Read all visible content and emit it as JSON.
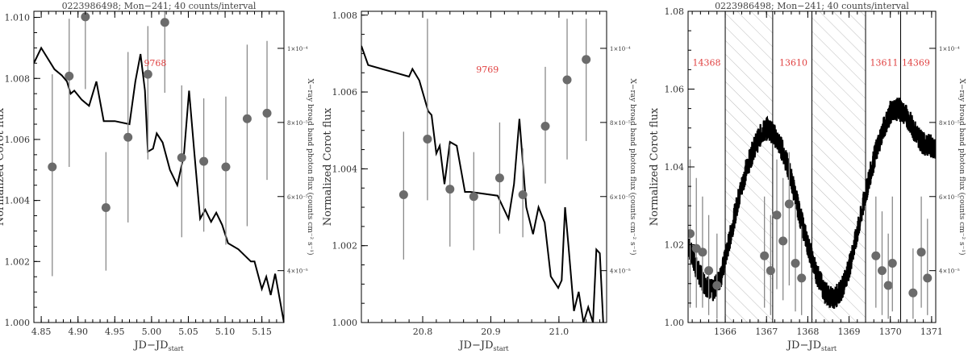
{
  "chart_data": [
    {
      "type": "line",
      "title": "0223986498; Mon−241; 40 counts/interval",
      "xlabel_main": "JD−JD",
      "xlabel_sub": "start",
      "ylabel": "Normalized Corot flux",
      "y2label": "X−ray broad band photon flux (counts cm⁻² s⁻¹)",
      "xlim": [
        4.84,
        5.18
      ],
      "ylim": [
        1.0,
        1.0102
      ],
      "xticks": [
        4.85,
        4.9,
        4.95,
        5.0,
        5.05,
        5.1,
        5.15
      ],
      "xtick_labels": [
        "4.85",
        "4.90",
        "4.95",
        "5.00",
        "5.05",
        "5.10",
        "5.15"
      ],
      "yticks": [
        1.0,
        1.002,
        1.004,
        1.006,
        1.008,
        1.01
      ],
      "ytick_labels": [
        "1.000",
        "1.002",
        "1.004",
        "1.006",
        "1.008",
        "1.010"
      ],
      "y2lim": [
        2.6e-05,
        0.00011
      ],
      "y2ticks": [
        4e-05,
        6e-05,
        8e-05,
        0.0001
      ],
      "y2tick_labels": [
        "4×10⁻⁵",
        "6×10⁻⁵",
        "8×10⁻⁵",
        "1×10⁻⁴"
      ],
      "line": {
        "x": [
          4.84,
          4.85,
          4.868,
          4.878,
          4.885,
          4.89,
          4.895,
          4.905,
          4.915,
          4.925,
          4.935,
          4.95,
          4.97,
          4.978,
          4.985,
          4.991,
          4.995,
          5.002,
          5.007,
          5.015,
          5.025,
          5.035,
          5.044,
          5.051,
          5.058,
          5.066,
          5.073,
          5.081,
          5.088,
          5.096,
          5.104,
          5.118,
          5.135,
          5.14,
          5.15,
          5.156,
          5.162,
          5.168,
          5.18
        ],
        "y": [
          1.0085,
          1.009,
          1.0083,
          1.0081,
          1.0079,
          1.0075,
          1.0076,
          1.0073,
          1.0071,
          1.0079,
          1.0066,
          1.0066,
          1.0065,
          1.0079,
          1.0088,
          1.0076,
          1.0056,
          1.0057,
          1.0062,
          1.0059,
          1.005,
          1.0045,
          1.0055,
          1.0076,
          1.0056,
          1.0034,
          1.0037,
          1.0033,
          1.0036,
          1.0032,
          1.0026,
          1.0024,
          1.002,
          1.002,
          1.0011,
          1.0015,
          1.0009,
          1.0016,
          1.0
        ]
      },
      "xray": [
        {
          "x": 4.865,
          "y": 6.8e-05,
          "lo": 3.85e-05,
          "hi": 9.3e-05
        },
        {
          "x": 4.888,
          "y": 9.25e-05,
          "lo": 6.8e-05,
          "hi": 0.000108
        },
        {
          "x": 4.91,
          "y": 0.0001085,
          "lo": 8.9e-05,
          "hi": 0.000114
        },
        {
          "x": 4.938,
          "y": 5.7e-05,
          "lo": 4e-05,
          "hi": 7.2e-05
        },
        {
          "x": 4.968,
          "y": 7.6e-05,
          "lo": 5.3e-05,
          "hi": 9.9e-05
        },
        {
          "x": 4.995,
          "y": 9.3e-05,
          "lo": 7e-05,
          "hi": 0.000106
        },
        {
          "x": 5.018,
          "y": 0.000107,
          "lo": 8.8e-05,
          "hi": 0.000114
        },
        {
          "x": 5.041,
          "y": 7.05e-05,
          "lo": 4.9e-05,
          "hi": 9e-05
        },
        {
          "x": 5.071,
          "y": 6.95e-05,
          "lo": 5.05e-05,
          "hi": 8.65e-05
        },
        {
          "x": 5.101,
          "y": 6.8e-05,
          "lo": 4.7e-05,
          "hi": 8.7e-05
        },
        {
          "x": 5.13,
          "y": 8.1e-05,
          "lo": 5.2e-05,
          "hi": 0.000101
        },
        {
          "x": 5.157,
          "y": 8.25e-05,
          "lo": 6.45e-05,
          "hi": 0.000102
        }
      ],
      "annotations": [
        {
          "x": 5.005,
          "y": 1.0084,
          "text": "9768"
        }
      ],
      "shaded": []
    },
    {
      "type": "line",
      "title": "",
      "xlabel_main": "JD−JD",
      "xlabel_sub": "start",
      "ylabel": "Normalized Corot flux",
      "y2label": "X−ray broad band photon flux (counts cm⁻² s⁻¹)",
      "xlim": [
        20.71,
        21.07
      ],
      "ylim": [
        1.0,
        1.0081
      ],
      "xticks": [
        20.8,
        20.9,
        21.0
      ],
      "xtick_labels": [
        "20.8",
        "20.9",
        "21.0"
      ],
      "yticks": [
        1.0,
        1.002,
        1.004,
        1.006,
        1.008
      ],
      "ytick_labels": [
        "1.000",
        "1.002",
        "1.004",
        "1.006",
        "1.008"
      ],
      "y2lim": [
        2.6e-05,
        0.00011
      ],
      "y2ticks": [
        4e-05,
        6e-05,
        8e-05,
        0.0001
      ],
      "y2tick_labels": [
        "4×10⁻⁵",
        "6×10⁻⁵",
        "8×10⁻⁵",
        "1×10⁻⁴"
      ],
      "line": {
        "x": [
          20.71,
          20.72,
          20.74,
          20.76,
          20.78,
          20.785,
          20.795,
          20.808,
          20.813,
          20.82,
          20.825,
          20.832,
          20.84,
          20.85,
          20.862,
          20.87,
          20.91,
          20.918,
          20.926,
          20.934,
          20.942,
          20.952,
          20.962,
          20.97,
          20.979,
          20.988,
          20.999,
          21.004,
          21.009,
          21.014,
          21.022,
          21.029,
          21.036,
          21.043,
          21.05,
          21.055,
          21.06,
          21.065
        ],
        "y": [
          1.0072,
          1.0067,
          1.0066,
          1.0065,
          1.0064,
          1.0066,
          1.0063,
          1.0055,
          1.0054,
          1.0044,
          1.0046,
          1.0036,
          1.0047,
          1.0046,
          1.0034,
          1.0034,
          1.0033,
          1.003,
          1.0027,
          1.0036,
          1.0053,
          1.003,
          1.0023,
          1.003,
          1.0026,
          1.0012,
          1.0009,
          1.0011,
          1.003,
          1.002,
          1.0003,
          1.0008,
          1.0,
          1.0004,
          1.0,
          1.0019,
          1.0018,
          1.0
        ]
      },
      "xray": [
        {
          "x": 20.772,
          "y": 6.05e-05,
          "lo": 4.3e-05,
          "hi": 7.75e-05
        },
        {
          "x": 20.807,
          "y": 7.55e-05,
          "lo": 5.9e-05,
          "hi": 0.000108
        },
        {
          "x": 20.84,
          "y": 6.2e-05,
          "lo": 4.65e-05,
          "hi": 7.4e-05
        },
        {
          "x": 20.875,
          "y": 6e-05,
          "lo": 4.55e-05,
          "hi": 7.2e-05
        },
        {
          "x": 20.913,
          "y": 6.5e-05,
          "lo": 5e-05,
          "hi": 8e-05
        },
        {
          "x": 20.947,
          "y": 6.05e-05,
          "lo": 4.9e-05,
          "hi": 7.3e-05
        },
        {
          "x": 20.98,
          "y": 7.9e-05,
          "lo": 6.35e-05,
          "hi": 9.5e-05
        },
        {
          "x": 21.012,
          "y": 9.15e-05,
          "lo": 7e-05,
          "hi": 0.000108
        },
        {
          "x": 21.04,
          "y": 9.7e-05,
          "lo": 7.5e-05,
          "hi": 0.000108
        }
      ],
      "annotations": [
        {
          "x": 20.895,
          "y": 1.0065,
          "text": "9769"
        }
      ],
      "shaded": []
    },
    {
      "type": "line",
      "title": "0223986498; Mon−241; 40 counts/interval",
      "xlabel_main": "JD−JD",
      "xlabel_sub": "start",
      "ylabel": "Normalized Corot flux",
      "y2label": "X−ray broad band photon flux (counts cm⁻² s⁻¹)",
      "xlim": [
        1365.1,
        1371.1
      ],
      "ylim": [
        1.0,
        1.08
      ],
      "xticks": [
        1366,
        1367,
        1368,
        1369,
        1370,
        1371
      ],
      "xtick_labels": [
        "1366",
        "1367",
        "1368",
        "1369",
        "1370",
        "1371"
      ],
      "yticks": [
        1.0,
        1.02,
        1.04,
        1.06,
        1.08
      ],
      "ytick_labels": [
        "1.00",
        "1.02",
        "1.04",
        "1.06",
        "1.08"
      ],
      "y2lim": [
        2.6e-05,
        0.00011
      ],
      "y2ticks": [
        4e-05,
        6e-05,
        8e-05,
        0.0001
      ],
      "y2tick_labels": [
        "4×10⁻⁵",
        "6×10⁻⁵",
        "8×10⁻⁵",
        "1×10⁻⁴"
      ],
      "line": {
        "x": [
          1365.1,
          1365.3,
          1365.5,
          1365.7,
          1365.9,
          1366.1,
          1366.3,
          1366.5,
          1366.7,
          1366.9,
          1367.05,
          1367.2,
          1367.4,
          1367.6,
          1367.8,
          1368.0,
          1368.2,
          1368.4,
          1368.6,
          1368.8,
          1369.0,
          1369.2,
          1369.4,
          1369.6,
          1369.8,
          1370.0,
          1370.2,
          1370.4,
          1370.6,
          1370.8,
          1371.1
        ],
        "y": [
          1.02,
          1.014,
          1.01,
          1.008,
          1.012,
          1.021,
          1.031,
          1.039,
          1.045,
          1.049,
          1.05,
          1.048,
          1.044,
          1.037,
          1.028,
          1.02,
          1.013,
          1.008,
          1.006,
          1.008,
          1.014,
          1.023,
          1.033,
          1.042,
          1.049,
          1.054,
          1.055,
          1.053,
          1.049,
          1.046,
          1.045
        ]
      },
      "xray": [
        {
          "x": 1365.15,
          "y": 5e-05,
          "lo": 3e-05,
          "hi": 7e-05
        },
        {
          "x": 1365.3,
          "y": 4.6e-05,
          "lo": 3e-05,
          "hi": 6.5e-05
        },
        {
          "x": 1365.45,
          "y": 4.5e-05,
          "lo": 3e-05,
          "hi": 6e-05
        },
        {
          "x": 1365.6,
          "y": 4e-05,
          "lo": 2.8e-05,
          "hi": 5.5e-05
        },
        {
          "x": 1365.8,
          "y": 3.6e-05,
          "lo": 2.7e-05,
          "hi": 5e-05
        },
        {
          "x": 1366.95,
          "y": 4.4e-05,
          "lo": 3e-05,
          "hi": 6e-05
        },
        {
          "x": 1367.1,
          "y": 4e-05,
          "lo": 2.8e-05,
          "hi": 5.5e-05
        },
        {
          "x": 1367.25,
          "y": 5.5e-05,
          "lo": 3.5e-05,
          "hi": 7e-05
        },
        {
          "x": 1367.4,
          "y": 4.8e-05,
          "lo": 3.2e-05,
          "hi": 6.5e-05
        },
        {
          "x": 1367.55,
          "y": 5.8e-05,
          "lo": 3.6e-05,
          "hi": 7.2e-05
        },
        {
          "x": 1367.7,
          "y": 4.2e-05,
          "lo": 2.9e-05,
          "hi": 5.8e-05
        },
        {
          "x": 1367.85,
          "y": 3.8e-05,
          "lo": 2.8e-05,
          "hi": 5.2e-05
        },
        {
          "x": 1369.65,
          "y": 4.4e-05,
          "lo": 3e-05,
          "hi": 6e-05
        },
        {
          "x": 1369.8,
          "y": 4e-05,
          "lo": 2.8e-05,
          "hi": 5.6e-05
        },
        {
          "x": 1369.95,
          "y": 3.6e-05,
          "lo": 2.7e-05,
          "hi": 5e-05
        },
        {
          "x": 1370.05,
          "y": 4.2e-05,
          "lo": 2.9e-05,
          "hi": 6e-05
        },
        {
          "x": 1370.55,
          "y": 3.4e-05,
          "lo": 2.7e-05,
          "hi": 4.6e-05
        },
        {
          "x": 1370.75,
          "y": 4.5e-05,
          "lo": 3e-05,
          "hi": 6e-05
        },
        {
          "x": 1370.9,
          "y": 3.8e-05,
          "lo": 2.8e-05,
          "hi": 5.4e-05
        }
      ],
      "annotations": [
        {
          "x": 1365.55,
          "y": 1.066,
          "text": "14368"
        },
        {
          "x": 1367.65,
          "y": 1.066,
          "text": "13610"
        },
        {
          "x": 1369.85,
          "y": 1.066,
          "text": "13611"
        },
        {
          "x": 1370.62,
          "y": 1.066,
          "text": "14369"
        }
      ],
      "shaded": [
        [
          1366.0,
          1367.15
        ],
        [
          1368.1,
          1369.4
        ]
      ],
      "vlines": [
        1366.0,
        1367.15,
        1368.1,
        1369.4,
        1370.25
      ]
    }
  ],
  "style": {
    "line_color": "#000000",
    "marker_color": "#6b6b6b",
    "errbar_color": "#8a8a8a",
    "label_color": "#e04040"
  }
}
